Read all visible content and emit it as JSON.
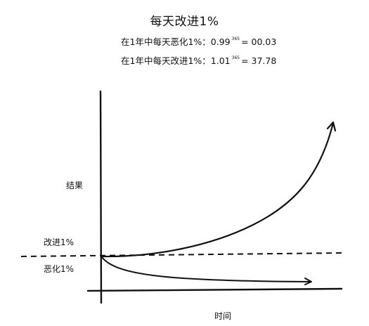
{
  "title": "每天改进1%",
  "formula_worsen": {
    "prefix": "在1年中每天恶化1%：0.99",
    "exponent": "365",
    "suffix": "= 00.03"
  },
  "formula_improve": {
    "prefix": "在1年中每天改进1%：1.01",
    "exponent": "365",
    "suffix": "= 37.78"
  },
  "axis_y_label": "结果",
  "axis_x_label": "时间",
  "curve_improve_label": "改进1%",
  "curve_worsen_label": "恶化1%",
  "colors": {
    "ink": "#111111",
    "background": "#ffffff"
  }
}
